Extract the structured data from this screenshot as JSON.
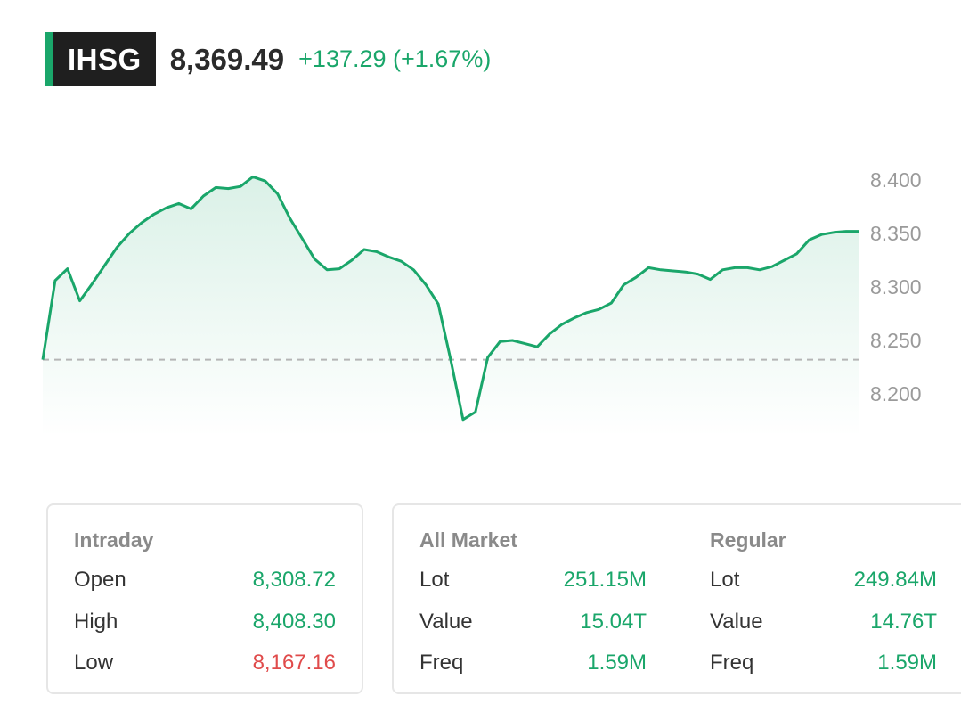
{
  "header": {
    "symbol": "IHSG",
    "price": "8,369.49",
    "change": "+137.29 (+1.67%)",
    "accent_color": "#1aa66a"
  },
  "chart_data": {
    "type": "area",
    "reference_line": 8232,
    "ylim": [
      8165,
      8415
    ],
    "yticks": [
      "8.400",
      "8.350",
      "8.300",
      "8.250",
      "8.200"
    ],
    "ytick_values": [
      8400,
      8350,
      8300,
      8250,
      8200
    ],
    "x": [
      0,
      1,
      2,
      3,
      4,
      5,
      6,
      7,
      8,
      9,
      10,
      11,
      12,
      13,
      14,
      15,
      16,
      17,
      18,
      19,
      20,
      21,
      22,
      23,
      24,
      25,
      26,
      27,
      28,
      29,
      30,
      31,
      32,
      33,
      34,
      35,
      36,
      37,
      38,
      39,
      40,
      41,
      42,
      43,
      44,
      45,
      46,
      47,
      48,
      49,
      50,
      51,
      52,
      53,
      54,
      55,
      56,
      57,
      58,
      59,
      60,
      61,
      62,
      63,
      64,
      65,
      66
    ],
    "values": [
      8232,
      8306,
      8317,
      8287,
      8303,
      8320,
      8337,
      8350,
      8360,
      8368,
      8374,
      8378,
      8373,
      8385,
      8393,
      8392,
      8394,
      8403,
      8399,
      8387,
      8364,
      8345,
      8326,
      8316,
      8317,
      8325,
      8335,
      8333,
      8328,
      8324,
      8316,
      8302,
      8284,
      8232,
      8176,
      8183,
      8234,
      8249,
      8250,
      8247,
      8244,
      8256,
      8265,
      8271,
      8276,
      8279,
      8285,
      8302,
      8309,
      8318,
      8316,
      8315,
      8314,
      8312,
      8307,
      8316,
      8318,
      8318,
      8316,
      8319,
      8325,
      8331,
      8344,
      8349,
      8351,
      8352,
      8352
    ],
    "line_color": "#1aa66a",
    "grid": false
  },
  "intraday": {
    "title": "Intraday",
    "rows": [
      {
        "label": "Open",
        "value": "8,308.72"
      },
      {
        "label": "High",
        "value": "8,408.30"
      },
      {
        "label": "Low",
        "value": "8,167.16"
      }
    ]
  },
  "all_market": {
    "title": "All Market",
    "rows": [
      {
        "label": "Lot",
        "value": "251.15M"
      },
      {
        "label": "Value",
        "value": "15.04T"
      },
      {
        "label": "Freq",
        "value": "1.59M"
      }
    ]
  },
  "regular": {
    "title": "Regular",
    "rows": [
      {
        "label": "Lot",
        "value": "249.84M"
      },
      {
        "label": "Value",
        "value": "14.76T"
      },
      {
        "label": "Freq",
        "value": "1.59M"
      }
    ]
  },
  "colors": {
    "up": "#1aa66a",
    "down": "#e04b4b"
  }
}
